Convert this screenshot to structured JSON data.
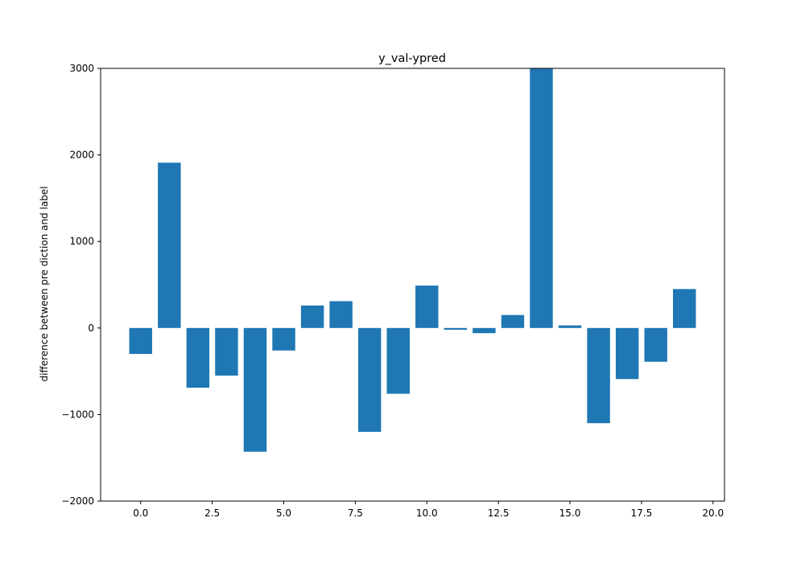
{
  "chart_data": {
    "type": "bar",
    "title": "y_val-ypred",
    "xlabel": "",
    "ylabel": "difference between pre diction and label",
    "x": [
      0,
      1,
      2,
      3,
      4,
      5,
      6,
      7,
      8,
      9,
      10,
      11,
      12,
      13,
      14,
      15,
      16,
      17,
      18,
      19
    ],
    "values": [
      -300,
      1910,
      -690,
      -550,
      -1430,
      -260,
      260,
      310,
      -1200,
      -760,
      490,
      -20,
      -60,
      150,
      3030,
      30,
      -1100,
      -590,
      -390,
      450
    ],
    "xlim": [
      -1.4,
      20.4
    ],
    "ylim": [
      -2000,
      3000
    ],
    "xticks": [
      0,
      2.5,
      5,
      7.5,
      10,
      12.5,
      15,
      17.5,
      20
    ],
    "xtick_labels": [
      "0.0",
      "2.5",
      "5.0",
      "7.5",
      "10.0",
      "12.5",
      "15.0",
      "17.5",
      "20.0"
    ],
    "yticks": [
      -2000,
      -1000,
      0,
      1000,
      2000,
      3000
    ],
    "ytick_labels": [
      "−2000",
      "−1000",
      "0",
      "1000",
      "2000",
      "3000"
    ],
    "grid": false,
    "bar_color": "#1f77b4",
    "axis_color": "#000000",
    "background": "#ffffff"
  }
}
